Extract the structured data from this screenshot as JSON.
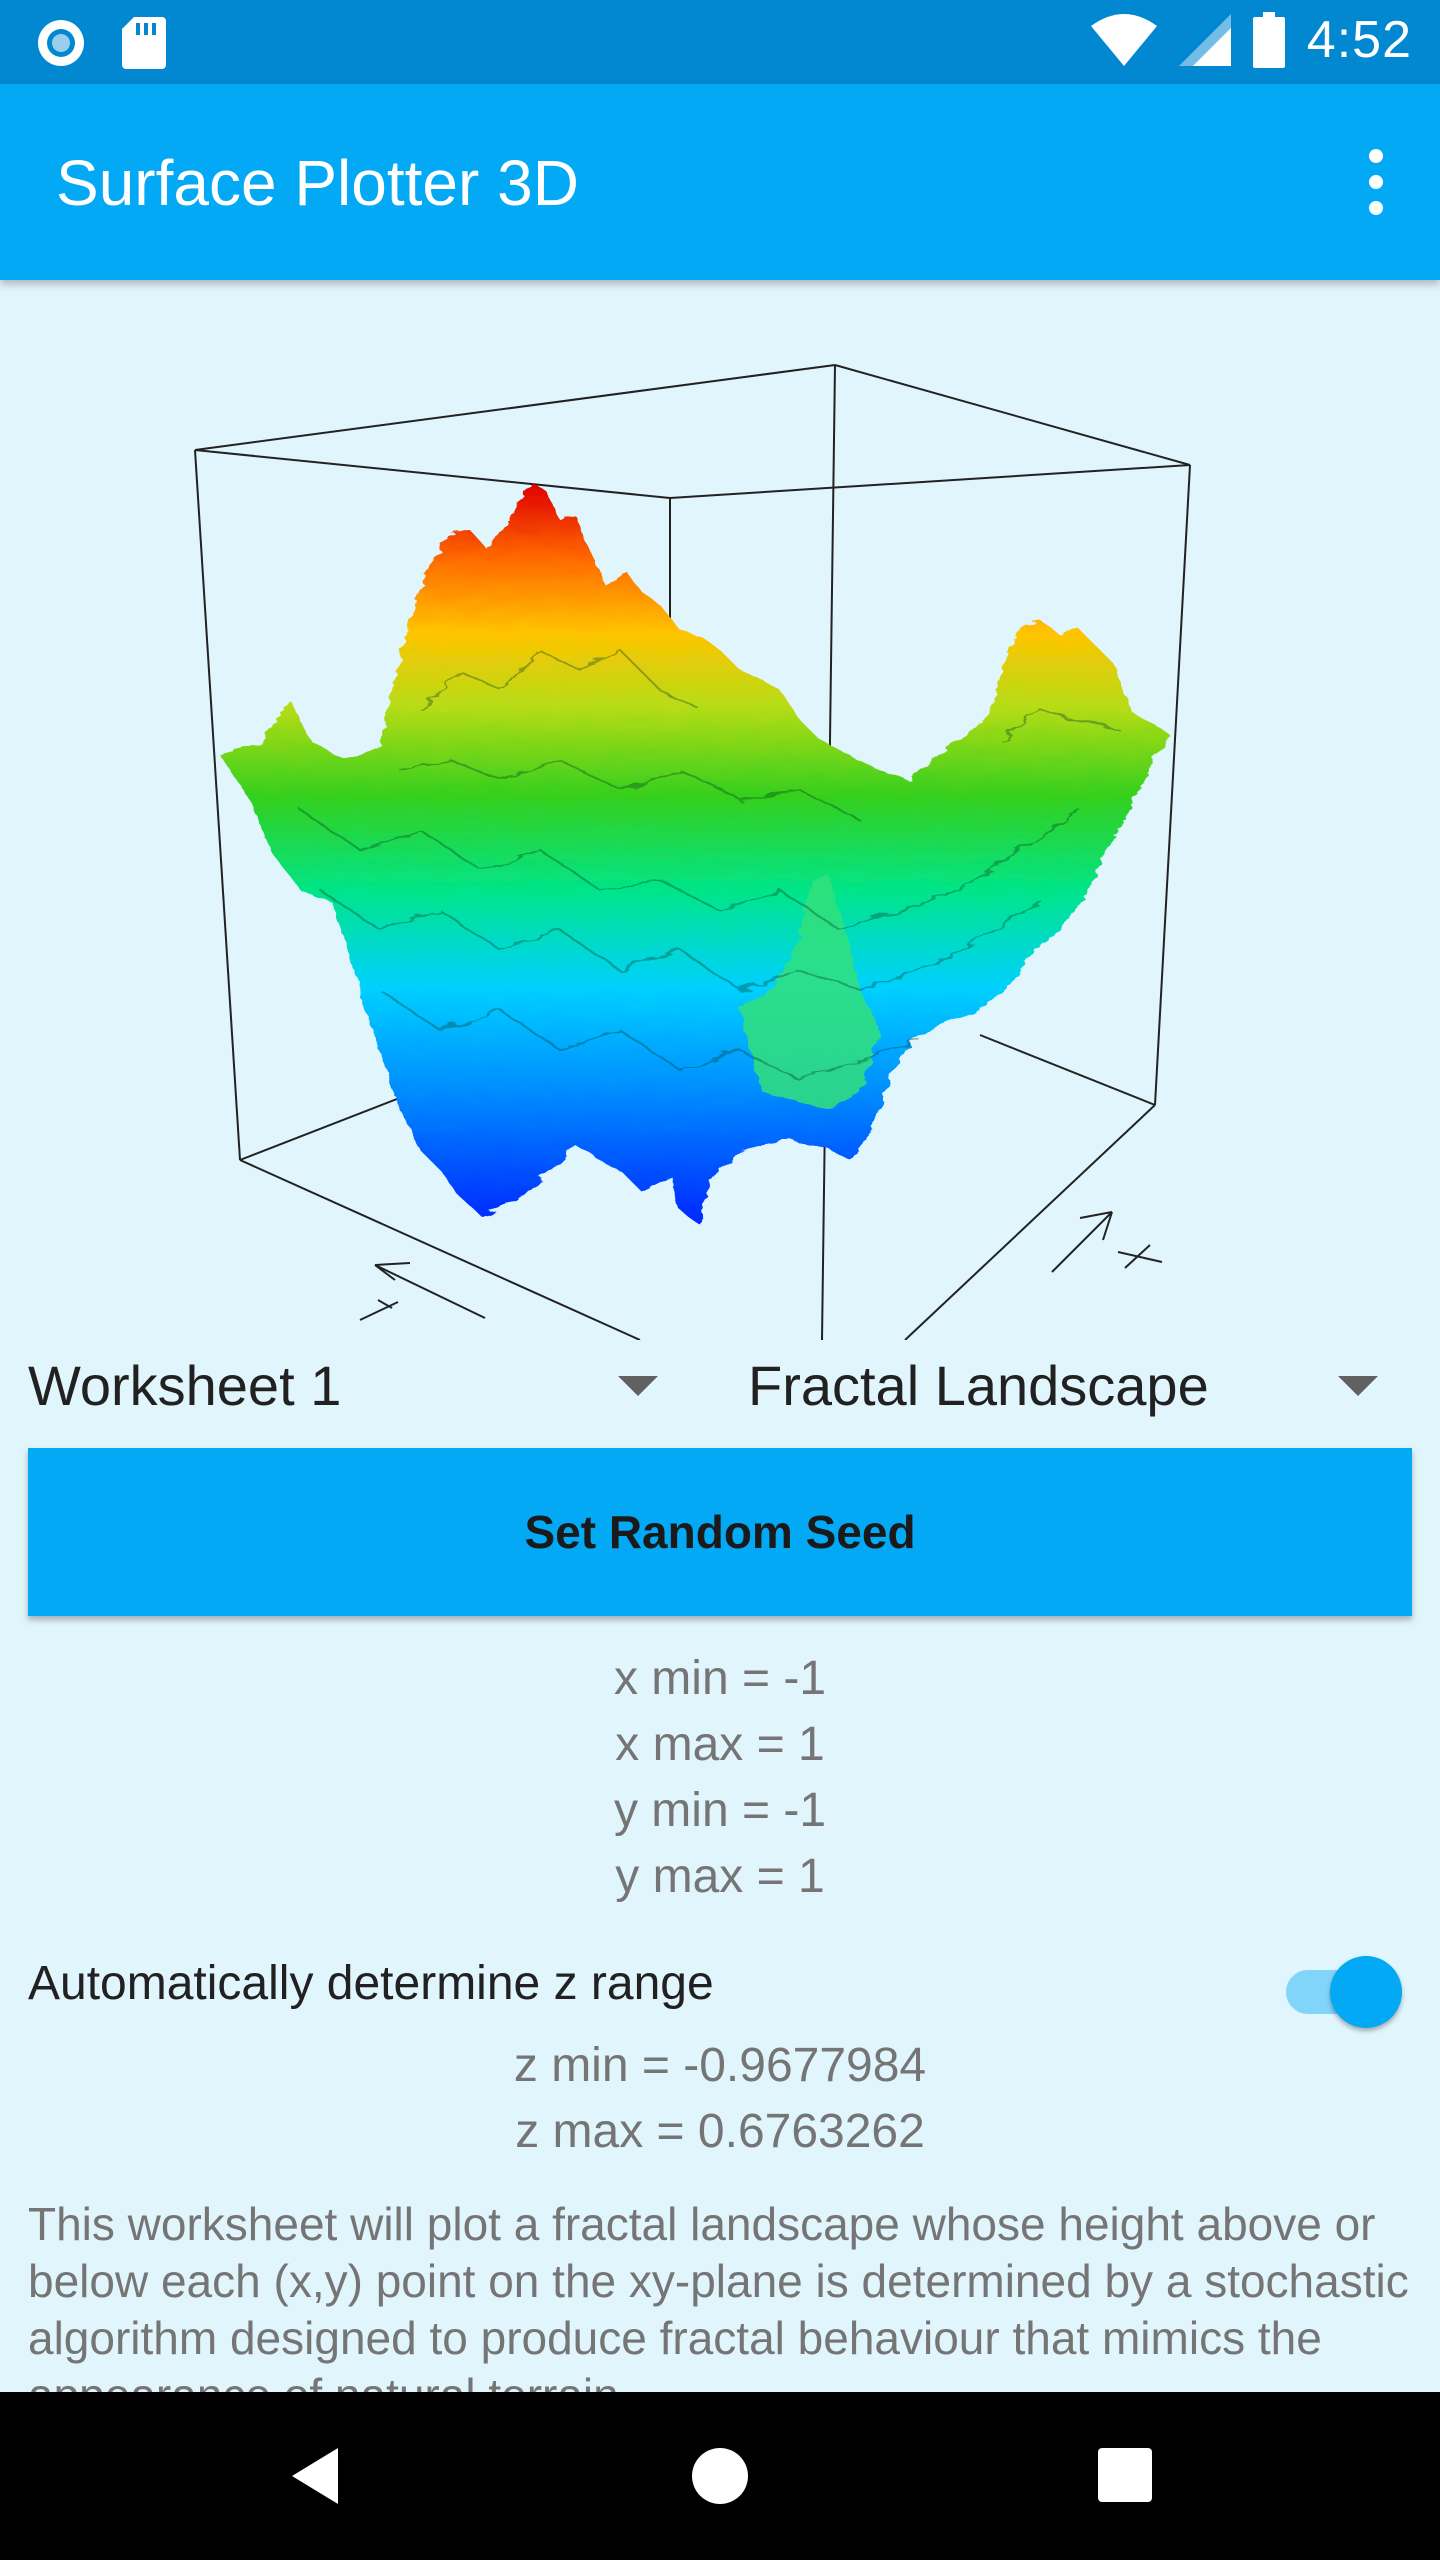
{
  "status_bar": {
    "time": "4:52",
    "icons": [
      "notification-circle-icon",
      "sd-card-icon",
      "wifi-icon",
      "cell-signal-icon",
      "battery-icon"
    ]
  },
  "app_bar": {
    "title": "Surface Plotter 3D",
    "overflow_icon": "more-vert-icon"
  },
  "plot": {
    "type": "3d-surface",
    "colormap": [
      "#0026ff",
      "#00bfff",
      "#00e57a",
      "#3ed11a",
      "#c6e01a",
      "#ffc400",
      "#ff6a00",
      "#e30000"
    ]
  },
  "spinners": {
    "worksheet": "Worksheet 1",
    "function": "Fractal Landscape"
  },
  "seed_button": {
    "label": "Set Random Seed"
  },
  "ranges": {
    "x_min": "x min = -1",
    "x_max": "x max = 1",
    "y_min": "y min = -1",
    "y_max": "y max = 1"
  },
  "z_range": {
    "auto_label": "Automatically determine z range",
    "auto_enabled": true,
    "z_min": "z min = -0.9677984",
    "z_max": "z max = 0.6763262"
  },
  "description": "This worksheet will plot a fractal landscape whose height above or below each (x,y) point on the xy-plane is determined by a stochastic algorithm designed to produce fractal behaviour that mimics the appearance of natural terrain.",
  "colors": {
    "status_bar": "#0288d1",
    "app_bar": "#03a9f4",
    "background": "#e1f5fd",
    "accent": "#03a9f4"
  },
  "nav_bar": {
    "icons": [
      "back-icon",
      "home-icon",
      "recents-icon"
    ]
  }
}
